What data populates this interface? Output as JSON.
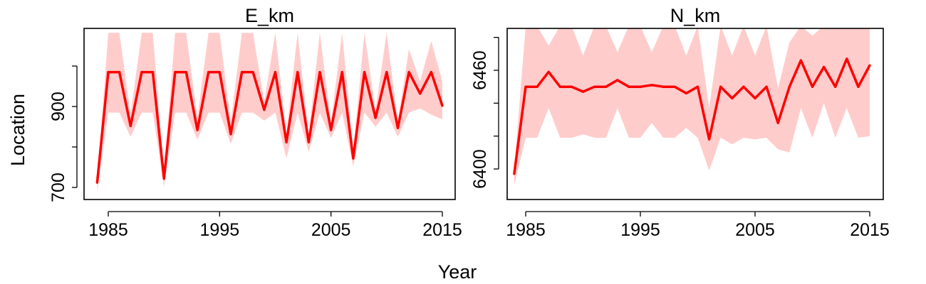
{
  "figure": {
    "xlabel": "Year",
    "ylabel": "Location"
  },
  "colors": {
    "line": "#ff0000",
    "band": "#ffcccc"
  },
  "chart_data": [
    {
      "type": "line",
      "title": "E_km",
      "xlabel": "Year",
      "ylabel": "Location",
      "xlim": [
        1983,
        2016
      ],
      "ylim": [
        682,
        1082
      ],
      "xticks": [
        1985,
        1995,
        2005,
        2015
      ],
      "yticks_labeled": [
        700,
        900
      ],
      "yticks_minor": [
        800,
        1000
      ],
      "x": [
        1984,
        1985,
        1986,
        1987,
        1988,
        1989,
        1990,
        1991,
        1992,
        1993,
        1994,
        1995,
        1996,
        1997,
        1998,
        1999,
        2000,
        2001,
        2002,
        2003,
        2004,
        2005,
        2006,
        2007,
        2008,
        2009,
        2010,
        2011,
        2012,
        2013,
        2014,
        2015
      ],
      "series": [
        {
          "values": [
            712,
            985,
            985,
            852,
            985,
            985,
            722,
            985,
            985,
            842,
            985,
            985,
            832,
            985,
            985,
            892,
            985,
            812,
            985,
            812,
            985,
            842,
            985,
            772,
            985,
            872,
            985,
            847,
            985,
            932,
            985,
            902
          ],
          "lower": [
            688,
            885,
            885,
            825,
            885,
            885,
            702,
            885,
            885,
            818,
            885,
            885,
            808,
            885,
            885,
            865,
            885,
            772,
            885,
            788,
            885,
            822,
            885,
            752,
            885,
            850,
            885,
            825,
            885,
            895,
            880,
            868
          ],
          "upper": [
            712,
            1082,
            1082,
            882,
            1082,
            1082,
            742,
            1082,
            1082,
            872,
            1082,
            1082,
            862,
            1082,
            1082,
            912,
            1082,
            832,
            1082,
            832,
            1082,
            862,
            1082,
            792,
            1082,
            892,
            1082,
            862,
            1042,
            962,
            1062,
            962
          ]
        }
      ]
    },
    {
      "type": "line",
      "title": "N_km",
      "xlabel": "Year",
      "ylabel": "Location",
      "xlim": [
        1983,
        2016
      ],
      "ylim": [
        6382,
        6487
      ],
      "xticks": [
        1985,
        1995,
        2005,
        2015
      ],
      "yticks_labeled": [
        6400,
        6460
      ],
      "yticks_minor": [
        6420,
        6440,
        6480
      ],
      "x": [
        1984,
        1985,
        1986,
        1987,
        1988,
        1989,
        1990,
        1991,
        1992,
        1993,
        1994,
        1995,
        1996,
        1997,
        1998,
        1999,
        2000,
        2001,
        2002,
        2003,
        2004,
        2005,
        2006,
        2007,
        2008,
        2009,
        2010,
        2011,
        2012,
        2013,
        2014,
        2015
      ],
      "series": [
        {
          "values": [
            6397,
            6450,
            6450,
            6459,
            6450,
            6450,
            6447,
            6450,
            6450,
            6454,
            6450,
            6450,
            6451,
            6450,
            6450,
            6446,
            6450,
            6418,
            6450,
            6443,
            6450,
            6443,
            6450,
            6428,
            6450,
            6466,
            6450,
            6462,
            6450,
            6467,
            6450,
            6463
          ],
          "lower": [
            6390,
            6419,
            6419,
            6437,
            6419,
            6419,
            6421,
            6419,
            6419,
            6437,
            6419,
            6419,
            6428,
            6419,
            6419,
            6425,
            6419,
            6399,
            6419,
            6415,
            6419,
            6418,
            6419,
            6412,
            6410,
            6437,
            6419,
            6440,
            6419,
            6437,
            6419,
            6420
          ],
          "upper": [
            6400,
            6487,
            6487,
            6475,
            6487,
            6487,
            6469,
            6487,
            6487,
            6471,
            6487,
            6487,
            6471,
            6487,
            6487,
            6469,
            6487,
            6437,
            6487,
            6469,
            6487,
            6469,
            6487,
            6449,
            6477,
            6487,
            6481,
            6487,
            6487,
            6487,
            6487,
            6487
          ]
        }
      ]
    }
  ]
}
